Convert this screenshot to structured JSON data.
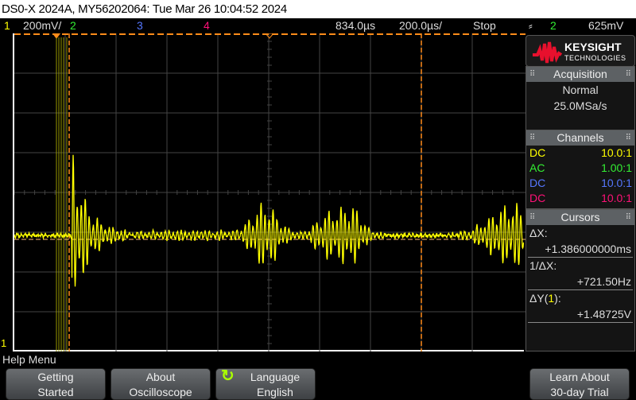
{
  "title": "DS0-X 2024A, MY56202064: Tue Mar 26 10:04:52 2024",
  "status": {
    "ch1": "1",
    "ch1_scale": "200mV/",
    "ch2": "2",
    "ch3": "3",
    "ch4": "4",
    "delay": "834.0µs",
    "timebase": "200.0µs/",
    "run_state": "Stop",
    "trigger_icon": "rising-edge-icon",
    "trigger_source": "2",
    "trigger_level": "625mV"
  },
  "logo": {
    "brand": "KEYSIGHT",
    "sub": "TECHNOLOGIES"
  },
  "acquisition": {
    "title": "Acquisition",
    "mode": "Normal",
    "rate": "25.0MSa/s"
  },
  "channels": {
    "title": "Channels",
    "items": [
      {
        "coupling": "DC",
        "probe": "10.0:1",
        "color": "#ffff00"
      },
      {
        "coupling": "AC",
        "probe": "1.00:1",
        "color": "#33ee33"
      },
      {
        "coupling": "DC",
        "probe": "10.0:1",
        "color": "#5577ff"
      },
      {
        "coupling": "DC",
        "probe": "10.0:1",
        "color": "#ff1177"
      }
    ]
  },
  "cursors": {
    "title": "Cursors",
    "dx_label": "ΔX:",
    "dx": "+1.386000000ms",
    "inv_label": "1/ΔX:",
    "inv": "+721.50Hz",
    "dy_label_pre": "ΔY(",
    "dy_ch": "1",
    "dy_label_post": "):",
    "dy": "+1.48725V"
  },
  "ground_marker": "1",
  "help_menu": "Help Menu",
  "buttons": [
    {
      "l1": "Getting",
      "l2": "Started"
    },
    {
      "l1": "About",
      "l2": "Oscilloscope"
    },
    {
      "l1": "Language",
      "l2": "English"
    },
    {
      "l1": "Learn About",
      "l2": "30-day Trial"
    }
  ],
  "colors": {
    "ch1": "#ffff00",
    "cursor": "#ff8c1a",
    "grid": "#444444"
  }
}
